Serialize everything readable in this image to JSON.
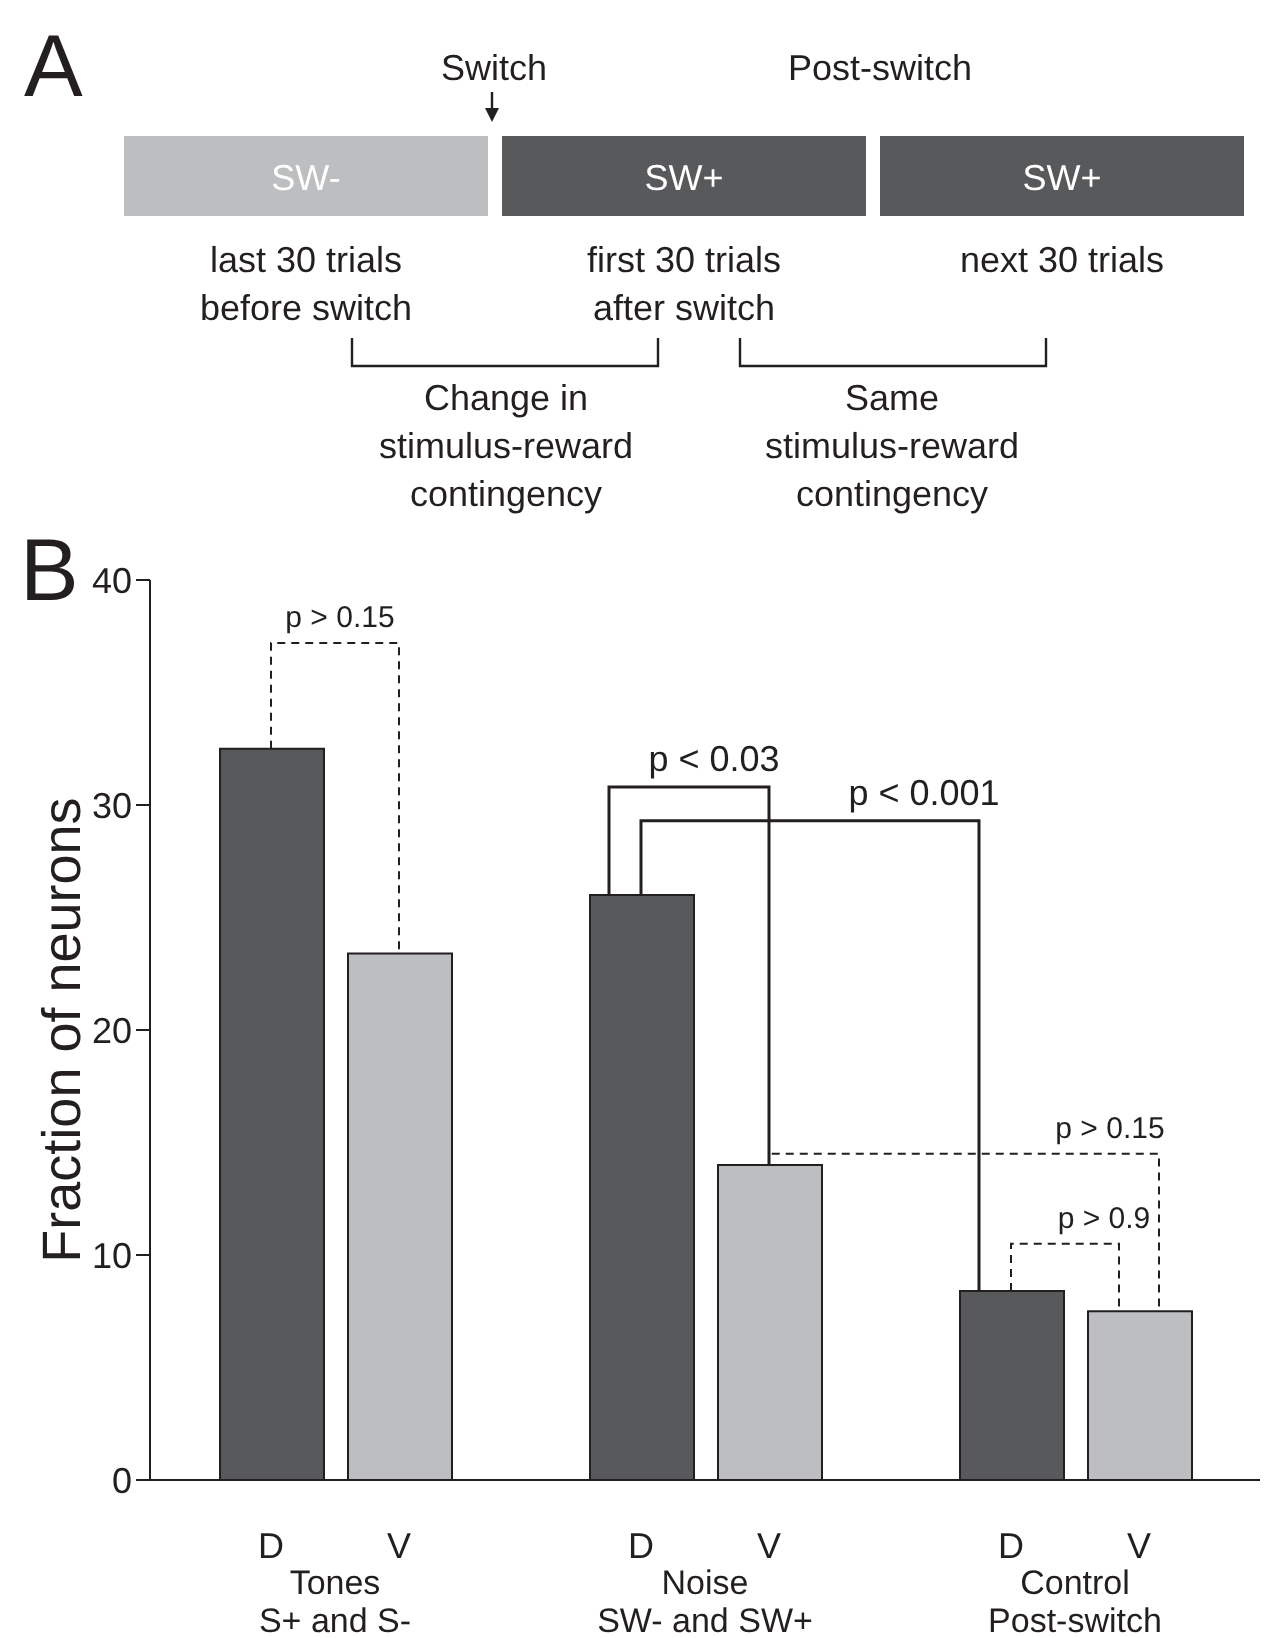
{
  "chart_data": [
    {
      "type": "other",
      "title": "A",
      "annotations": [
        "Switch",
        "Post-switch",
        "SW-",
        "SW+",
        "SW+",
        "last 30 trials\nbefore switch",
        "first 30 trials\nafter switch",
        "next 30 trials",
        "Change in\nstimulus-reward\ncontingency",
        "Same\nstimulus-reward\ncontingency"
      ]
    },
    {
      "type": "bar",
      "title": "B",
      "ylabel": "Fraction of neurons",
      "categories": [
        "Tones\nS+ and S-",
        "Noise\nSW- and SW+",
        "Control\nPost-switch"
      ],
      "series": [
        {
          "name": "D",
          "color": "#58595b",
          "values": [
            32.5,
            26,
            8.4
          ]
        },
        {
          "name": "V",
          "color": "#bcbec0",
          "values": [
            23.4,
            14,
            7.5
          ]
        }
      ],
      "ylim": [
        0,
        40
      ],
      "yticks": [
        0,
        10,
        20,
        30,
        40
      ],
      "grid": false,
      "annotations": [
        "p > 0.15",
        "p < 0.03",
        "p < 0.001",
        "p > 0.15",
        "p > 0.9"
      ]
    }
  ]
}
